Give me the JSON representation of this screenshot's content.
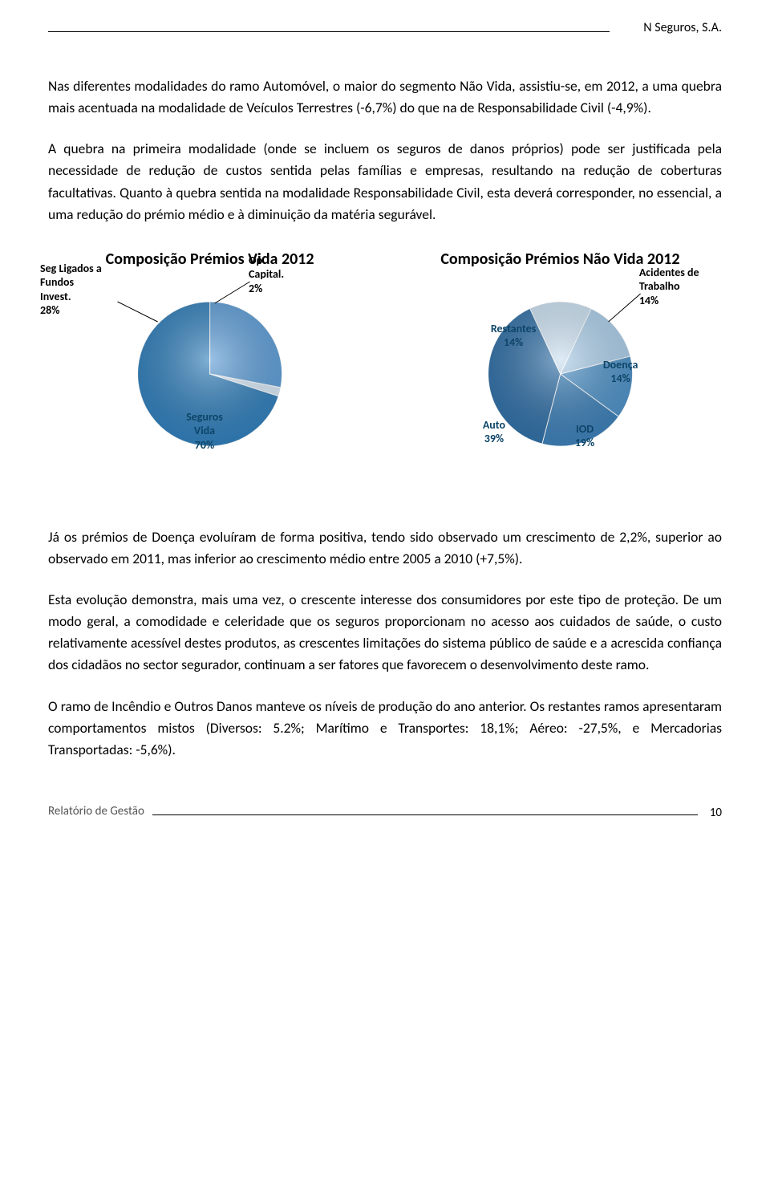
{
  "header": {
    "company": "N Seguros, S.A."
  },
  "paragraphs": {
    "p1": "Nas diferentes modalidades do ramo Automóvel, o maior do segmento Não Vida, assistiu-se, em 2012, a uma quebra mais acentuada na modalidade de Veículos Terrestres (-6,7%) do que na de Responsabilidade Civil (-4,9%).",
    "p2": "A quebra na primeira modalidade (onde se incluem os seguros de danos próprios) pode ser justificada pela necessidade de redução de custos sentida pelas famílias e empresas, resultando na redução de coberturas facultativas. Quanto à quebra sentida na modalidade Responsabilidade Civil, esta deverá corresponder, no essencial, a uma redução do prémio médio e à diminuição da matéria segurável.",
    "p3": "Já os prémios de Doença evoluíram de forma positiva, tendo sido observado um crescimento de 2,2%, superior ao observado em 2011, mas inferior ao crescimento médio entre 2005 a 2010 (+7,5%).",
    "p4": "Esta evolução demonstra, mais uma vez, o crescente interesse dos consumidores por este tipo de proteção. De um modo geral, a comodidade e celeridade que os seguros proporcionam no acesso aos cuidados de saúde, o custo relativamente acessível destes produtos, as crescentes limitações do sistema público de saúde e a acrescida confiança dos cidadãos no sector segurador, continuam a ser fatores que favorecem o desenvolvimento deste ramo.",
    "p5": "O ramo de Incêndio e Outros Danos manteve os níveis de produção do ano anterior. Os restantes ramos apresentaram comportamentos mistos (Diversos: 5.2%; Marítimo e Transportes: 18,1%; Aéreo: -27,5%, e Mercadorias Transportadas: -5,6%)."
  },
  "chart_vida": {
    "type": "pie",
    "title": "Composição Prémios Vida 2012",
    "slices": [
      {
        "label": "Seg Ligados a Fundos Invest.",
        "value_label": "28%",
        "value": 28,
        "color": "#5b9bd5"
      },
      {
        "label": "Op Capital.",
        "value_label": "2%",
        "value": 2,
        "color": "#d6e6f4"
      },
      {
        "label": "Seguros Vida",
        "value_label": "70%",
        "value": 70,
        "color": "#2e7cb8"
      }
    ],
    "label0": "Seg\nLigados a\nFundos\nInvest.\n28%",
    "label1": "Op\nCapital.\n2%",
    "label2": "Seguros\nVida\n70%",
    "background_color": "#ffffff",
    "radius": 90,
    "start_angle": -90
  },
  "chart_naovida": {
    "type": "pie",
    "title": "Composição Prémios Não Vida 2012",
    "slices": [
      {
        "label": "Restantes",
        "value_label": "14%",
        "value": 14,
        "color": "#c9dff0"
      },
      {
        "label": "Acidentes de Trabalho",
        "value_label": "14%",
        "value": 14,
        "color": "#a9cce8"
      },
      {
        "label": "Doença",
        "value_label": "14%",
        "value": 14,
        "color": "#4b8fc5"
      },
      {
        "label": "IOD",
        "value_label": "19%",
        "value": 19,
        "color": "#3a7db5"
      },
      {
        "label": "Auto",
        "value_label": "39%",
        "value": 39,
        "color": "#2e6da4"
      }
    ],
    "label0": "Restantes\n14%",
    "label1": "Acidentes\nde Trabalho\n14%",
    "label2": "Doença\n14%",
    "label3": "IOD\n19%",
    "label4": "Auto\n39%",
    "background_color": "#ffffff",
    "radius": 90,
    "start_angle": -115
  },
  "footer": {
    "left": "Relatório de Gestão",
    "page": "10"
  }
}
